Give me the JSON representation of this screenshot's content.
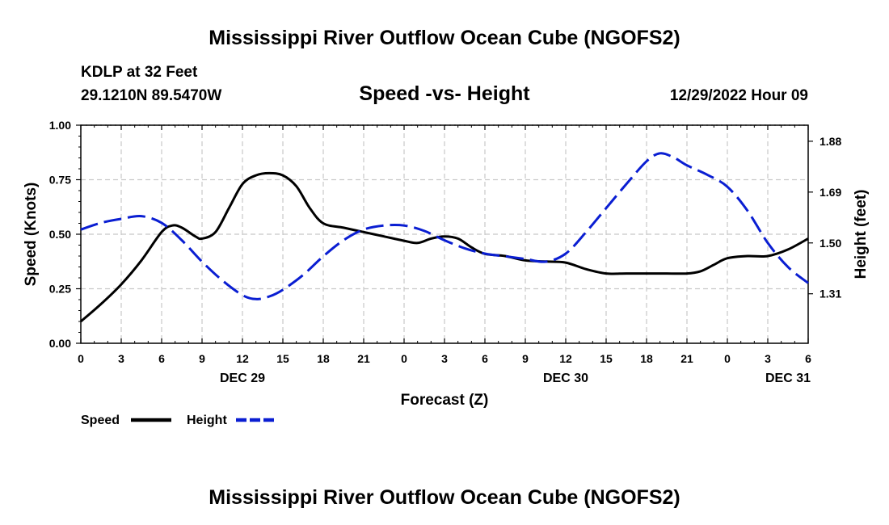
{
  "page": {
    "title": "Mississippi River Outflow Ocean Cube (NGOFS2)",
    "footer_title": "Mississippi River Outflow Ocean Cube (NGOFS2)",
    "station": "KDLP at 32 Feet",
    "coords": "29.1210N  89.5470W",
    "plot_title": "Speed -vs- Height",
    "timestamp": "12/29/2022 Hour 09"
  },
  "chart_data": {
    "type": "line",
    "title": "Speed -vs- Height",
    "xlabel": "Forecast (Z)",
    "ylabel_left": "Speed (Knots)",
    "ylabel_right": "Height (feet)",
    "x_range": [
      0,
      54
    ],
    "x_ticks": [
      {
        "x": 0,
        "label": "0"
      },
      {
        "x": 3,
        "label": "3"
      },
      {
        "x": 6,
        "label": "6"
      },
      {
        "x": 9,
        "label": "9"
      },
      {
        "x": 12,
        "label": "12"
      },
      {
        "x": 15,
        "label": "15"
      },
      {
        "x": 18,
        "label": "18"
      },
      {
        "x": 21,
        "label": "21"
      },
      {
        "x": 24,
        "label": "0"
      },
      {
        "x": 27,
        "label": "3"
      },
      {
        "x": 30,
        "label": "6"
      },
      {
        "x": 33,
        "label": "9"
      },
      {
        "x": 36,
        "label": "12"
      },
      {
        "x": 39,
        "label": "15"
      },
      {
        "x": 42,
        "label": "18"
      },
      {
        "x": 45,
        "label": "21"
      },
      {
        "x": 48,
        "label": "0"
      },
      {
        "x": 51,
        "label": "3"
      },
      {
        "x": 54,
        "label": "6"
      }
    ],
    "date_labels": [
      {
        "x": 12,
        "label": "DEC 29"
      },
      {
        "x": 36,
        "label": "DEC 30"
      },
      {
        "x": 52.5,
        "label": "DEC 31"
      }
    ],
    "left_axis": {
      "ylim": [
        0,
        1
      ],
      "ticks": [
        "0.00",
        "0.25",
        "0.50",
        "0.75",
        "1.00"
      ],
      "tick_values": [
        0,
        0.25,
        0.5,
        0.75,
        1.0
      ]
    },
    "right_axis": {
      "ylim": [
        1.125,
        1.94
      ],
      "ticks": [
        "1.31",
        "1.50",
        "1.69",
        "1.88"
      ],
      "tick_values": [
        1.31,
        1.5,
        1.69,
        1.88
      ]
    },
    "grid": true,
    "series": [
      {
        "name": "Speed",
        "axis": "left",
        "color": "#000000",
        "style": "solid",
        "x": [
          0,
          1.5,
          3,
          4.5,
          6,
          6.8,
          7.5,
          8.5,
          9,
          10,
          11,
          12,
          13,
          14,
          15,
          16,
          17,
          18,
          19.5,
          21,
          22.5,
          24,
          25,
          26,
          27,
          28,
          29,
          30,
          31.5,
          33,
          34.5,
          36,
          37.5,
          39,
          40.5,
          42,
          43.5,
          45,
          46,
          47,
          48,
          49.5,
          51,
          52.5,
          54
        ],
        "values": [
          0.1,
          0.18,
          0.27,
          0.38,
          0.51,
          0.54,
          0.53,
          0.49,
          0.48,
          0.51,
          0.62,
          0.73,
          0.77,
          0.78,
          0.77,
          0.72,
          0.62,
          0.55,
          0.53,
          0.51,
          0.49,
          0.47,
          0.46,
          0.48,
          0.49,
          0.48,
          0.44,
          0.41,
          0.4,
          0.38,
          0.375,
          0.37,
          0.34,
          0.32,
          0.32,
          0.32,
          0.32,
          0.32,
          0.33,
          0.36,
          0.39,
          0.4,
          0.4,
          0.43,
          0.48
        ]
      },
      {
        "name": "Height",
        "axis": "right",
        "color": "#0a1ed2",
        "style": "dashed",
        "x": [
          0,
          1.5,
          3,
          4.5,
          6,
          7.5,
          9,
          10.5,
          12,
          13,
          14,
          15,
          16.5,
          18,
          19.5,
          21,
          22.5,
          24,
          25.5,
          27,
          28.5,
          30,
          31.5,
          33,
          34.5,
          36,
          37.5,
          39,
          40.5,
          42,
          43,
          44,
          45,
          46.5,
          48,
          49.5,
          51,
          52.5,
          54
        ],
        "values": [
          1.55,
          1.575,
          1.59,
          1.6,
          1.575,
          1.51,
          1.43,
          1.36,
          1.305,
          1.29,
          1.3,
          1.325,
          1.38,
          1.45,
          1.51,
          1.55,
          1.565,
          1.565,
          1.545,
          1.51,
          1.48,
          1.46,
          1.45,
          1.44,
          1.43,
          1.46,
          1.54,
          1.63,
          1.72,
          1.805,
          1.835,
          1.82,
          1.79,
          1.755,
          1.71,
          1.62,
          1.5,
          1.41,
          1.35
        ]
      }
    ],
    "legend": {
      "placement": "bottom-left",
      "entries": [
        {
          "label": "Speed",
          "color": "#000000",
          "style": "solid"
        },
        {
          "label": "Height",
          "color": "#0a1ed2",
          "style": "dashed"
        }
      ]
    }
  }
}
